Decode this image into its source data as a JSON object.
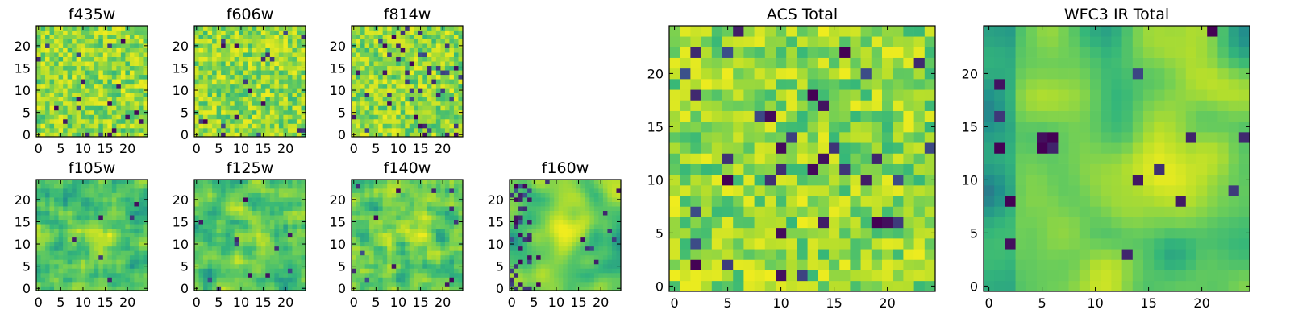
{
  "chart_data": [
    {
      "type": "heatmap",
      "title": "f435w",
      "grid_size": 25,
      "xticks": [
        0,
        5,
        10,
        15,
        20
      ],
      "yticks": [
        0,
        5,
        10,
        15,
        20
      ],
      "xlim": [
        -0.5,
        24.5
      ],
      "ylim": [
        -0.5,
        24.5
      ],
      "colormap": "viridis",
      "pixels": "uniform noise, mostly yellow-green with scattered dark blue pixels"
    },
    {
      "type": "heatmap",
      "title": "f606w",
      "grid_size": 25,
      "xticks": [
        0,
        5,
        10,
        15,
        20
      ],
      "yticks": [
        0,
        5,
        10,
        15,
        20
      ],
      "xlim": [
        -0.5,
        24.5
      ],
      "ylim": [
        -0.5,
        24.5
      ],
      "colormap": "viridis",
      "pixels": "uniform noise, mixed teal and yellow with scattered dark blue pixels"
    },
    {
      "type": "heatmap",
      "title": "f814w",
      "grid_size": 25,
      "xticks": [
        0,
        5,
        10,
        15,
        20
      ],
      "yticks": [
        0,
        5,
        10,
        15,
        20
      ],
      "xlim": [
        -0.5,
        24.5
      ],
      "ylim": [
        -0.5,
        24.5
      ],
      "colormap": "viridis",
      "pixels": "uniform noise, yellow-green with many dark blue pixels"
    },
    {
      "type": "heatmap",
      "title": "f105w",
      "grid_size": 25,
      "xticks": [
        0,
        5,
        10,
        15,
        20
      ],
      "yticks": [
        0,
        5,
        10,
        15,
        20
      ],
      "xlim": [
        -0.5,
        24.5
      ],
      "ylim": [
        -0.5,
        24.5
      ],
      "colormap": "viridis",
      "pixels": "smoothed noise, green with faint brighter center"
    },
    {
      "type": "heatmap",
      "title": "f125w",
      "grid_size": 25,
      "xticks": [
        0,
        5,
        10,
        15,
        20
      ],
      "yticks": [
        0,
        5,
        10,
        15,
        20
      ],
      "xlim": [
        -0.5,
        24.5
      ],
      "ylim": [
        -0.5,
        24.5
      ],
      "colormap": "viridis",
      "pixels": "smoothed noise, brighter yellow region around center"
    },
    {
      "type": "heatmap",
      "title": "f140w",
      "grid_size": 25,
      "xticks": [
        0,
        5,
        10,
        15,
        20
      ],
      "yticks": [
        0,
        5,
        10,
        15,
        20
      ],
      "xlim": [
        -0.5,
        24.5
      ],
      "ylim": [
        -0.5,
        24.5
      ],
      "colormap": "viridis",
      "pixels": "smoothed noise, yellow-green center with a few dark pixels"
    },
    {
      "type": "heatmap",
      "title": "f160w",
      "grid_size": 25,
      "xticks": [
        0,
        5,
        10,
        15,
        20
      ],
      "yticks": [
        0,
        5,
        10,
        15,
        20
      ],
      "xlim": [
        -0.5,
        24.5
      ],
      "ylim": [
        -0.5,
        24.5
      ],
      "colormap": "viridis",
      "pixels": "smoothed, bright yellow band across center, dark pixels on left edge"
    },
    {
      "type": "heatmap",
      "title": "ACS Total",
      "grid_size": 25,
      "xticks": [
        0,
        5,
        10,
        15,
        20
      ],
      "yticks": [
        0,
        5,
        10,
        15,
        20
      ],
      "xlim": [
        -0.5,
        24.5
      ],
      "ylim": [
        -0.5,
        24.5
      ],
      "colormap": "viridis",
      "pixels": "uniform noise, green-yellow with scattered dark purple pixels"
    },
    {
      "type": "heatmap",
      "title": "WFC3 IR Total",
      "grid_size": 25,
      "xticks": [
        0,
        5,
        10,
        15,
        20
      ],
      "yticks": [
        0,
        5,
        10,
        15,
        20
      ],
      "xlim": [
        -0.5,
        24.5
      ],
      "ylim": [
        -0.5,
        24.5
      ],
      "colormap": "viridis",
      "pixels": "smoothed, bright yellow blob right of center, dark blob near (5,13), dark left edge"
    }
  ]
}
